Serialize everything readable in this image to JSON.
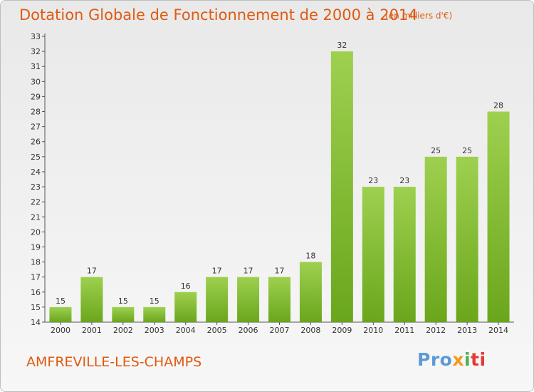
{
  "header": {
    "title": "Dotation Globale de Fonctionnement de 2000 à 2014",
    "subtitle": "(en milliers d'€)"
  },
  "footer": {
    "commune": "AMFREVILLE-LES-CHAMPS",
    "logo": {
      "p1": "Pro",
      "p2": "x",
      "p3": "i",
      "p4": "ti"
    }
  },
  "colors": {
    "title": "#e05a10",
    "bar_top": "#9ed04f",
    "bar_bottom": "#6aa61c"
  },
  "chart_data": {
    "type": "bar",
    "title": "Dotation Globale de Fonctionnement de 2000 à 2014",
    "subtitle": "(en milliers d'€)",
    "categories": [
      "2000",
      "2001",
      "2002",
      "2003",
      "2004",
      "2005",
      "2006",
      "2007",
      "2008",
      "2009",
      "2010",
      "2011",
      "2012",
      "2013",
      "2014"
    ],
    "values": [
      15,
      17,
      15,
      15,
      16,
      17,
      17,
      17,
      18,
      32,
      23,
      23,
      25,
      25,
      28
    ],
    "ylim": [
      14,
      33
    ],
    "yticks": [
      14,
      15,
      16,
      17,
      18,
      19,
      20,
      21,
      22,
      23,
      24,
      25,
      26,
      27,
      28,
      29,
      30,
      31,
      32,
      33
    ],
    "grid": false,
    "xlabel": "",
    "ylabel": ""
  }
}
